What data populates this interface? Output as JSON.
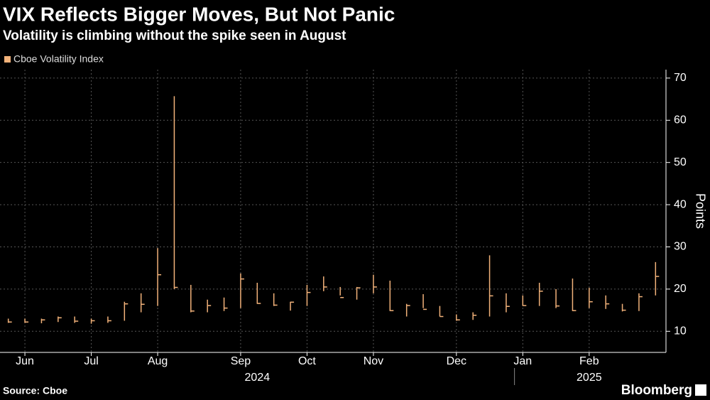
{
  "chart_data": {
    "type": "ohlc",
    "title": "VIX Reflects Bigger Moves, But Not Panic",
    "subtitle": "Volatility is climbing without the spike seen in August",
    "y_label": "Points",
    "source": "Source: Cboe",
    "brand": "Bloomberg",
    "categories": [
      null,
      "Jun",
      null,
      null,
      null,
      "Jul",
      null,
      null,
      null,
      "Aug",
      null,
      null,
      null,
      null,
      "Sep",
      null,
      null,
      null,
      "Oct",
      null,
      null,
      null,
      "Nov",
      null,
      null,
      null,
      null,
      "Dec",
      null,
      null,
      null,
      "Jan",
      null,
      null,
      null,
      "Feb",
      null,
      null,
      null,
      null
    ],
    "year_groups": [
      {
        "label": "2024",
        "start": 0
      },
      {
        "label": "2025",
        "start": 31
      }
    ],
    "series": [
      {
        "name": "Cboe Volatility Index",
        "color": "#f2b27a",
        "high": [
          13,
          13,
          13,
          13.5,
          13.5,
          13,
          13.5,
          17,
          19,
          29.7,
          65.7,
          21,
          17.5,
          18,
          23.7,
          21.5,
          19,
          17,
          21,
          23,
          20.5,
          20.5,
          23.4,
          22,
          16.5,
          18.8,
          16,
          14,
          14.5,
          28,
          19,
          18.5,
          21.5,
          20,
          22.5,
          20.3,
          18.5,
          16.5,
          19,
          26.4
        ],
        "low": [
          12,
          12,
          11.9,
          12.2,
          12,
          11.8,
          12,
          12.5,
          14.5,
          16,
          20,
          14.5,
          14.5,
          14.8,
          15.5,
          16.5,
          16,
          14.9,
          16,
          19.5,
          18.5,
          17.5,
          19,
          14.8,
          13.5,
          15.5,
          13.5,
          12.5,
          12.7,
          13.5,
          14.5,
          16,
          16,
          15.5,
          14.8,
          15.5,
          15.3,
          14.7,
          14.8,
          18.5
        ],
        "close": [
          12.2,
          12.2,
          12.7,
          13.2,
          12.4,
          12.5,
          12.5,
          16.5,
          16.4,
          23.4,
          20.4,
          14.8,
          16.1,
          15.5,
          22.4,
          16.6,
          16.2,
          16.9,
          19.2,
          20.5,
          18,
          20.3,
          20.5,
          14.9,
          16.1,
          15.2,
          13.5,
          12.7,
          13.8,
          18.4,
          15.9,
          16.1,
          19.5,
          16,
          14.9,
          17,
          16.5,
          15,
          18.2,
          23
        ]
      }
    ],
    "ylim": [
      5,
      72
    ],
    "yticks": [
      10,
      20,
      30,
      40,
      50,
      60,
      70
    ],
    "grid": true
  }
}
